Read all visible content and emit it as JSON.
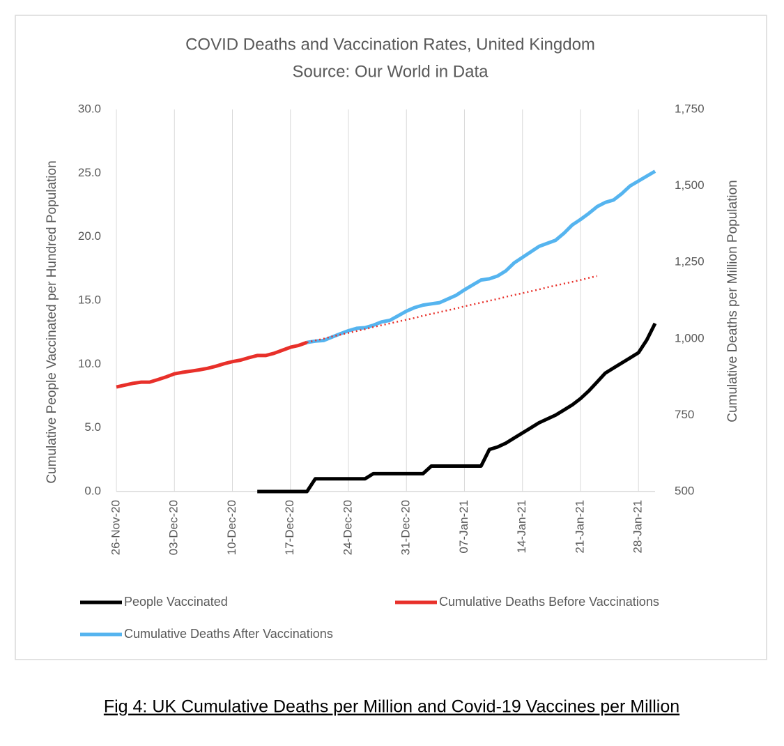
{
  "chart_data": {
    "type": "line",
    "title": "COVID Deaths and Vaccination Rates, United Kingdom",
    "subtitle": "Source: Our World in Data",
    "y_label": "Cumulative People Vaccinated per Hundred Population",
    "y2_label": "Cumulative Deaths per Million Population",
    "caption": "Fig 4: UK Cumulative Deaths per Million and Covid-19 Vaccines per Million",
    "grid": "x",
    "categories": [
      "26-Nov-20",
      null,
      null,
      null,
      null,
      null,
      null,
      "03-Dec-20",
      null,
      null,
      null,
      null,
      null,
      null,
      "10-Dec-20",
      null,
      null,
      null,
      null,
      null,
      null,
      "17-Dec-20",
      null,
      null,
      null,
      null,
      null,
      null,
      "24-Dec-20",
      null,
      null,
      null,
      null,
      null,
      null,
      "31-Dec-20",
      null,
      null,
      null,
      null,
      null,
      null,
      "07-Jan-21",
      null,
      null,
      null,
      null,
      null,
      null,
      "14-Jan-21",
      null,
      null,
      null,
      null,
      null,
      null,
      "21-Jan-21",
      null,
      null,
      null,
      null,
      null,
      null,
      "28-Jan-21",
      null,
      null
    ],
    "ylim": [
      0,
      30
    ],
    "yticks": [
      {
        "value": 0,
        "label": "0.0"
      },
      {
        "value": 5,
        "label": "5.0"
      },
      {
        "value": 10,
        "label": "10.0"
      },
      {
        "value": 15,
        "label": "15.0"
      },
      {
        "value": 20,
        "label": "20.0"
      },
      {
        "value": 25,
        "label": "25.0"
      },
      {
        "value": 30,
        "label": "30.0"
      }
    ],
    "y2lim": [
      500,
      1750
    ],
    "y2ticks": [
      500,
      750,
      {
        "value": 1000,
        "label": "1,000"
      },
      {
        "value": 1250,
        "label": "1,250"
      },
      {
        "value": 1500,
        "label": "1,500"
      },
      {
        "value": 1750,
        "label": "1,750"
      }
    ],
    "series": [
      {
        "name": "People Vaccinated",
        "color": "#000000",
        "values": [
          null,
          null,
          null,
          null,
          null,
          null,
          null,
          null,
          null,
          null,
          null,
          null,
          null,
          null,
          null,
          null,
          null,
          0,
          0,
          0,
          0,
          0,
          0,
          0,
          1.0,
          1.0,
          1.0,
          1.0,
          1.0,
          1.0,
          1.0,
          1.4,
          1.4,
          1.4,
          1.4,
          1.4,
          1.4,
          1.4,
          2.0,
          2.0,
          2.0,
          2.0,
          2.0,
          2.0,
          2.0,
          3.3,
          3.5,
          3.8,
          4.2,
          4.6,
          5.0,
          5.4,
          5.7,
          6.0,
          6.4,
          6.8,
          7.3,
          7.9,
          8.6,
          9.3,
          9.7,
          10.1,
          10.5,
          10.9,
          11.9,
          13.2
        ]
      },
      {
        "name": "Cumulative Deaths Before Vaccinations",
        "color": "#e8302a",
        "axis": "y2",
        "values": [
          842,
          848,
          854,
          858,
          858,
          866,
          875,
          885,
          890,
          894,
          898,
          903,
          910,
          918,
          925,
          930,
          938,
          945,
          945,
          952,
          962,
          972,
          978,
          988,
          null,
          null,
          null,
          null,
          null,
          null,
          null,
          null,
          null,
          null,
          null,
          null,
          null,
          null,
          null,
          null,
          null,
          null,
          null,
          null,
          null,
          null,
          null,
          null,
          null,
          null,
          null,
          null,
          null,
          null,
          null,
          null,
          null,
          null,
          null,
          null,
          null,
          null,
          null,
          null,
          null,
          null
        ]
      },
      {
        "name": "Cumulative Deaths After Vaccinations",
        "color": "#55b4ef",
        "axis": "y2",
        "values": [
          null,
          null,
          null,
          null,
          null,
          null,
          null,
          null,
          null,
          null,
          null,
          null,
          null,
          null,
          null,
          null,
          null,
          null,
          null,
          null,
          null,
          null,
          null,
          988,
          992,
          994,
          1005,
          1016,
          1026,
          1034,
          1036,
          1044,
          1055,
          1060,
          1075,
          1090,
          1102,
          1110,
          1114,
          1118,
          1130,
          1142,
          1160,
          1176,
          1192,
          1196,
          1205,
          1222,
          1248,
          1266,
          1284,
          1302,
          1312,
          1322,
          1345,
          1372,
          1390,
          1410,
          1432,
          1446,
          1454,
          1475,
          1500,
          1516,
          1532,
          1548
        ]
      }
    ],
    "trendline": {
      "color": "#e8302a",
      "style": "dotted",
      "axis": "y2",
      "values": [
        null,
        null,
        null,
        null,
        null,
        null,
        null,
        null,
        null,
        null,
        null,
        null,
        null,
        null,
        null,
        null,
        null,
        null,
        null,
        null,
        null,
        null,
        null,
        988,
        994,
        1000,
        1007,
        1013,
        1019,
        1025,
        1031,
        1038,
        1044,
        1050,
        1056,
        1062,
        1068,
        1075,
        1081,
        1087,
        1093,
        1099,
        1106,
        1112,
        1118,
        1124,
        1130,
        1137,
        1143,
        1149,
        1155,
        1161,
        1168,
        1174,
        1180,
        1186,
        1192,
        1199,
        1205,
        null,
        null,
        null,
        null,
        null,
        null,
        null
      ]
    }
  }
}
